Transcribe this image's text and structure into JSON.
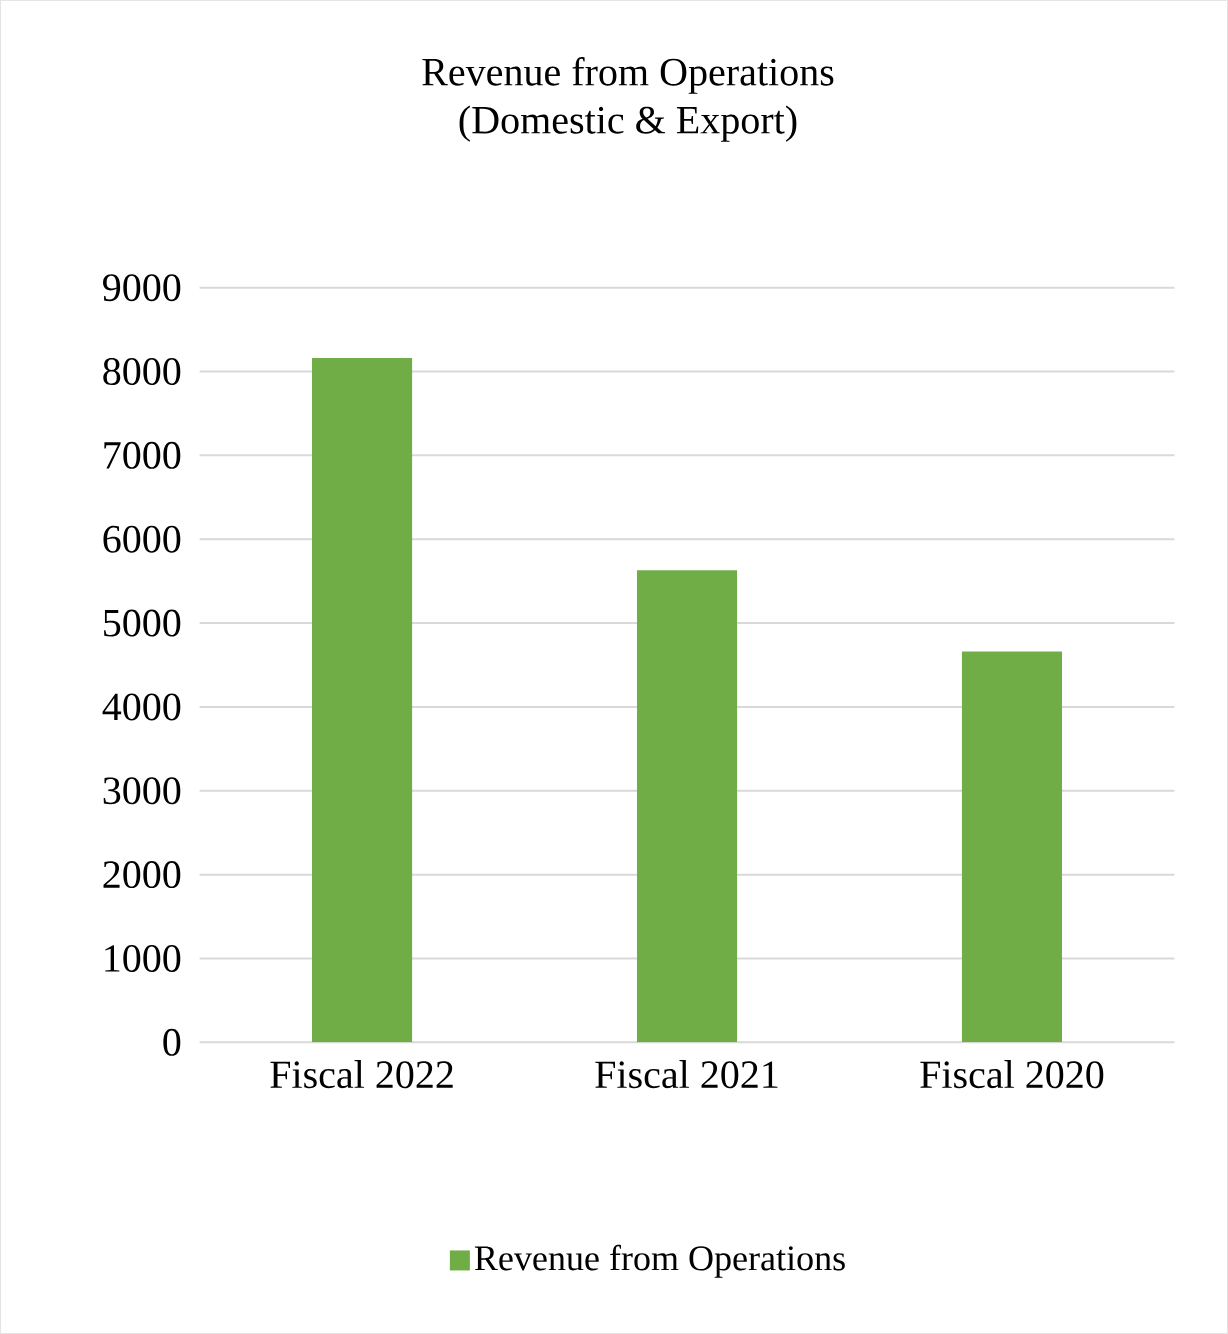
{
  "chart_data": {
    "type": "bar",
    "title": "Revenue from Operations\n(Domestic & Export)",
    "categories": [
      "Fiscal 2022",
      "Fiscal 2021",
      "Fiscal 2020"
    ],
    "series": [
      {
        "name": "Revenue from Operations",
        "color": "#70ad47",
        "values": [
          8160,
          5630,
          4660
        ]
      }
    ],
    "ylim": [
      0,
      9000
    ],
    "yticks": [
      0,
      1000,
      2000,
      3000,
      4000,
      5000,
      6000,
      7000,
      8000,
      9000
    ],
    "grid": "y",
    "legend": "bottom"
  }
}
